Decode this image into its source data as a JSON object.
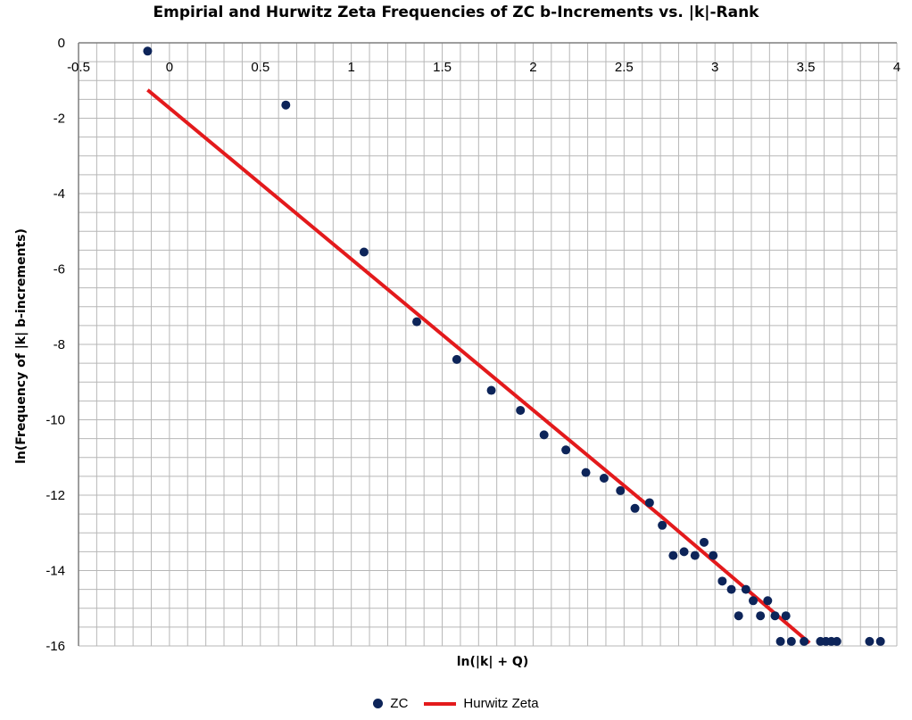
{
  "colors": {
    "zc": "#0d2459",
    "hurwitz": "#e31a1c",
    "grid": "#b7b7b7",
    "axis": "#7f7f7f"
  },
  "chart_data": {
    "type": "scatter",
    "title": "Empirial and Hurwitz Zeta Frequencies of ZC b-Increments vs. |k|-Rank",
    "xlabel": "ln(|k| + Q)",
    "ylabel": "ln(Frequency of |k| b-increments)",
    "xlim": [
      -0.5,
      4
    ],
    "ylim": [
      -16,
      0
    ],
    "x_ticks": [
      "-0.5",
      "0",
      "0.5",
      "1",
      "1.5",
      "2",
      "2.5",
      "3",
      "3.5",
      "4"
    ],
    "y_ticks": [
      "0",
      "-2",
      "-4",
      "-6",
      "-8",
      "-10",
      "-12",
      "-14",
      "-16"
    ],
    "grid": true,
    "legend": "bottom",
    "series": [
      {
        "name": "ZC",
        "kind": "markers",
        "points": [
          [
            -0.12,
            -0.22
          ],
          [
            0.64,
            -1.65
          ],
          [
            1.07,
            -5.55
          ],
          [
            1.36,
            -7.4
          ],
          [
            1.58,
            -8.4
          ],
          [
            1.77,
            -9.22
          ],
          [
            1.93,
            -9.75
          ],
          [
            2.06,
            -10.4
          ],
          [
            2.18,
            -10.8
          ],
          [
            2.29,
            -11.4
          ],
          [
            2.39,
            -11.55
          ],
          [
            2.48,
            -11.88
          ],
          [
            2.56,
            -12.35
          ],
          [
            2.64,
            -12.2
          ],
          [
            2.71,
            -12.8
          ],
          [
            2.77,
            -13.6
          ],
          [
            2.83,
            -13.5
          ],
          [
            2.89,
            -13.6
          ],
          [
            2.94,
            -13.25
          ],
          [
            2.99,
            -13.6
          ],
          [
            3.04,
            -14.28
          ],
          [
            3.09,
            -14.5
          ],
          [
            3.13,
            -15.2
          ],
          [
            3.17,
            -14.5
          ],
          [
            3.21,
            -14.8
          ],
          [
            3.25,
            -15.2
          ],
          [
            3.29,
            -14.8
          ],
          [
            3.33,
            -15.2
          ],
          [
            3.36,
            -15.88
          ],
          [
            3.39,
            -15.2
          ],
          [
            3.42,
            -15.88
          ],
          [
            3.49,
            -15.88
          ],
          [
            3.58,
            -15.88
          ],
          [
            3.61,
            -15.88
          ],
          [
            3.64,
            -15.88
          ],
          [
            3.67,
            -15.88
          ],
          [
            3.85,
            -15.88
          ],
          [
            3.91,
            -15.88
          ]
        ]
      },
      {
        "name": "Hurwitz Zeta",
        "kind": "line",
        "points": [
          [
            -0.12,
            -1.25
          ],
          [
            2.7,
            -12.55
          ],
          [
            3.52,
            -15.92
          ]
        ]
      }
    ]
  }
}
